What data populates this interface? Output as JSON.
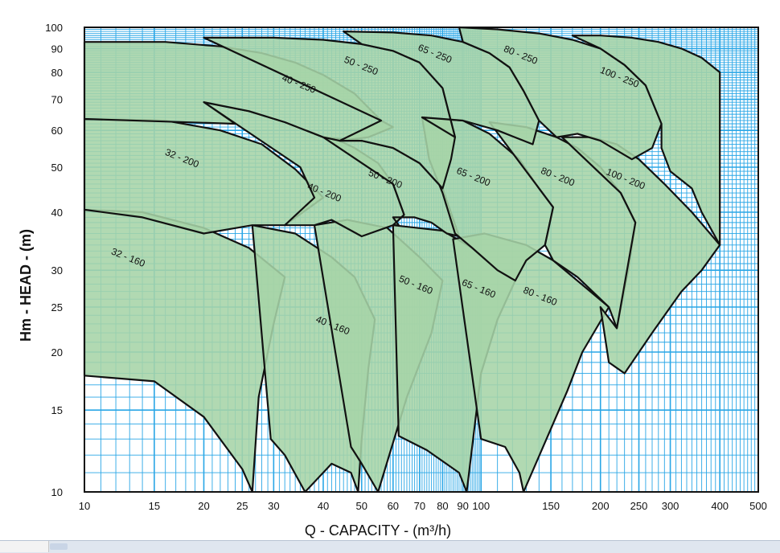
{
  "chart_data": {
    "type": "area",
    "xlabel": "Q - CAPACITY - (m³/h)",
    "ylabel": "Hm - HEAD - (m)",
    "x_scale": "log",
    "y_scale": "log",
    "xlim": [
      10,
      500
    ],
    "ylim": [
      10,
      100
    ],
    "grid": true,
    "x_ticks": [
      10,
      15,
      20,
      25,
      30,
      40,
      50,
      60,
      70,
      80,
      90,
      100,
      150,
      200,
      250,
      300,
      400,
      500
    ],
    "y_ticks": [
      10,
      15,
      20,
      25,
      30,
      40,
      50,
      60,
      70,
      80,
      90,
      100
    ],
    "colors": {
      "fill": "#a6d4a7",
      "grid": "#29a6e6",
      "outline": "#111111",
      "frame": "#111111"
    },
    "series": [
      {
        "name": "32 - 160",
        "label_at": [
          12.8,
          31.5
        ],
        "polygon": [
          [
            10,
            40.5
          ],
          [
            14,
            40
          ],
          [
            20,
            37
          ],
          [
            26,
            33.5
          ],
          [
            32,
            29
          ],
          [
            30,
            23
          ],
          [
            27.5,
            16
          ],
          [
            26.5,
            10
          ],
          [
            25,
            11.2
          ],
          [
            20,
            14.5
          ],
          [
            15,
            17.3
          ],
          [
            10,
            17.8
          ]
        ]
      },
      {
        "name": "40 - 160",
        "label_at": [
          42,
          22.5
        ],
        "polygon": [
          [
            26.5,
            37.5
          ],
          [
            34,
            36
          ],
          [
            42,
            32
          ],
          [
            48,
            29
          ],
          [
            54,
            23.5
          ],
          [
            52,
            18.5
          ],
          [
            50,
            13
          ],
          [
            49,
            10
          ],
          [
            47,
            11
          ],
          [
            42,
            11.5
          ],
          [
            36,
            10
          ],
          [
            32,
            12
          ],
          [
            29.5,
            13
          ]
        ]
      },
      {
        "name": "50 - 160",
        "label_at": [
          68,
          27.5
        ],
        "polygon": [
          [
            38,
            37.5
          ],
          [
            46,
            38.5
          ],
          [
            58,
            37
          ],
          [
            70,
            32
          ],
          [
            80,
            28.5
          ],
          [
            75,
            22
          ],
          [
            65,
            16
          ],
          [
            55,
            10
          ],
          [
            50,
            11.5
          ],
          [
            47,
            12.5
          ]
        ]
      },
      {
        "name": "65 - 160",
        "label_at": [
          98,
          27
        ],
        "polygon": [
          [
            60,
            37.5
          ],
          [
            80,
            36.5
          ],
          [
            95,
            33.5
          ],
          [
            110,
            30
          ],
          [
            122,
            28.5
          ],
          [
            110,
            23.5
          ],
          [
            100,
            18
          ],
          [
            92,
            10
          ],
          [
            88,
            11
          ],
          [
            73,
            12.3
          ],
          [
            62,
            13.2
          ]
        ]
      },
      {
        "name": "80 - 160",
        "label_at": [
          140,
          26
        ],
        "polygon": [
          [
            85,
            35
          ],
          [
            102,
            36
          ],
          [
            130,
            34
          ],
          [
            152,
            31.5
          ],
          [
            210,
            25
          ],
          [
            180,
            20
          ],
          [
            165,
            16.5
          ],
          [
            128,
            10
          ],
          [
            125,
            11
          ],
          [
            115,
            12.5
          ],
          [
            100,
            13
          ]
        ]
      },
      {
        "name": "32 - 200",
        "label_at": [
          17.5,
          51.5
        ],
        "polygon": [
          [
            10,
            63.5
          ],
          [
            16,
            63
          ],
          [
            22,
            60
          ],
          [
            28,
            56
          ],
          [
            34,
            49.5
          ],
          [
            38,
            45
          ],
          [
            40,
            43
          ],
          [
            32,
            37.5
          ],
          [
            26.5,
            37.5
          ],
          [
            20,
            36
          ],
          [
            14,
            39
          ],
          [
            10,
            40.5
          ]
        ]
      },
      {
        "name": "40 - 200",
        "label_at": [
          40,
          43.5
        ],
        "polygon": [
          [
            20,
            69
          ],
          [
            26,
            66
          ],
          [
            32,
            62.5
          ],
          [
            40,
            58
          ],
          [
            44,
            57
          ],
          [
            48,
            55
          ],
          [
            55,
            51
          ],
          [
            60,
            46
          ],
          [
            64,
            39.5
          ],
          [
            60,
            37.5
          ],
          [
            50,
            35.5
          ],
          [
            42,
            38.5
          ],
          [
            38,
            37.5
          ],
          [
            32,
            37.5
          ],
          [
            38,
            43
          ],
          [
            35,
            50
          ]
        ]
      },
      {
        "name": "50 - 200",
        "label_at": [
          57,
          46.5
        ],
        "polygon": [
          [
            40,
            58
          ],
          [
            50,
            57
          ],
          [
            60,
            55
          ],
          [
            70,
            51
          ],
          [
            80,
            45
          ],
          [
            88,
            35.5
          ],
          [
            82,
            36
          ],
          [
            75,
            38
          ],
          [
            68,
            39
          ],
          [
            60,
            39
          ],
          [
            62,
            37.5
          ],
          [
            60,
            37.5
          ],
          [
            64,
            39.5
          ],
          [
            60,
            46
          ]
        ]
      },
      {
        "name": "65 - 200",
        "label_at": [
          95,
          47
        ],
        "polygon": [
          [
            71,
            64
          ],
          [
            90,
            63
          ],
          [
            105,
            59
          ],
          [
            125,
            52
          ],
          [
            140,
            45
          ],
          [
            152,
            41
          ],
          [
            145,
            34
          ],
          [
            130,
            31.5
          ],
          [
            122,
            28.5
          ],
          [
            110,
            30
          ],
          [
            95,
            33.5
          ],
          [
            86,
            36
          ],
          [
            80,
            44
          ],
          [
            74,
            52
          ]
        ]
      },
      {
        "name": "80 - 200",
        "label_at": [
          155,
          47
        ],
        "polygon": [
          [
            105,
            62.5
          ],
          [
            130,
            61
          ],
          [
            155,
            58
          ],
          [
            175,
            55
          ],
          [
            200,
            50
          ],
          [
            225,
            44
          ],
          [
            245,
            38
          ],
          [
            235,
            30
          ],
          [
            220,
            22.5
          ],
          [
            210,
            25
          ],
          [
            175,
            29
          ],
          [
            152,
            31.5
          ],
          [
            145,
            34
          ],
          [
            152,
            41
          ]
        ]
      },
      {
        "name": "100 - 200",
        "label_at": [
          230,
          46.5
        ],
        "polygon": [
          [
            160,
            58
          ],
          [
            190,
            58
          ],
          [
            220,
            56
          ],
          [
            250,
            52
          ],
          [
            290,
            46
          ],
          [
            340,
            40
          ],
          [
            400,
            34
          ],
          [
            360,
            30
          ],
          [
            320,
            27
          ],
          [
            270,
            22
          ],
          [
            230,
            18
          ],
          [
            210,
            19
          ],
          [
            200,
            25
          ],
          [
            220,
            22.5
          ],
          [
            245,
            38
          ],
          [
            225,
            44
          ]
        ]
      },
      {
        "name": "40 - 250",
        "label_at": [
          34.5,
          74.5
        ],
        "polygon": [
          [
            10,
            93
          ],
          [
            16,
            93
          ],
          [
            22,
            91
          ],
          [
            28,
            88
          ],
          [
            34,
            84
          ],
          [
            40,
            79
          ],
          [
            48,
            72
          ],
          [
            56,
            63
          ],
          [
            60,
            61
          ],
          [
            52,
            58
          ],
          [
            44,
            57
          ],
          [
            40,
            58
          ],
          [
            32,
            62.5
          ],
          [
            26,
            66
          ],
          [
            20,
            69
          ],
          [
            24,
            62
          ],
          [
            10,
            63.5
          ]
        ]
      },
      {
        "name": "50 - 250",
        "label_at": [
          49.5,
          81.5
        ],
        "polygon": [
          [
            20,
            95
          ],
          [
            30,
            95
          ],
          [
            40,
            94
          ],
          [
            50,
            92
          ],
          [
            60,
            89
          ],
          [
            70,
            84
          ],
          [
            80,
            74
          ],
          [
            86,
            58
          ],
          [
            84,
            52
          ],
          [
            80,
            45
          ],
          [
            70,
            51
          ],
          [
            60,
            55
          ],
          [
            50,
            57
          ],
          [
            44,
            57
          ],
          [
            56,
            63
          ]
        ]
      },
      {
        "name": "65 - 250",
        "label_at": [
          76,
          86.5
        ],
        "polygon": [
          [
            45,
            98
          ],
          [
            60,
            97.5
          ],
          [
            75,
            96
          ],
          [
            90,
            93
          ],
          [
            105,
            88
          ],
          [
            118,
            82
          ],
          [
            128,
            73
          ],
          [
            140,
            63
          ],
          [
            135,
            56
          ],
          [
            110,
            60
          ],
          [
            90,
            63
          ],
          [
            71,
            64
          ],
          [
            86,
            58
          ],
          [
            80,
            74
          ],
          [
            70,
            84
          ],
          [
            60,
            89
          ],
          [
            50,
            92
          ]
        ]
      },
      {
        "name": "80 - 250",
        "label_at": [
          125,
          86
        ],
        "polygon": [
          [
            88,
            100
          ],
          [
            110,
            99
          ],
          [
            140,
            97
          ],
          [
            170,
            94
          ],
          [
            200,
            90
          ],
          [
            230,
            83
          ],
          [
            260,
            75
          ],
          [
            285,
            62
          ],
          [
            270,
            55
          ],
          [
            240,
            52
          ],
          [
            200,
            57
          ],
          [
            175,
            59
          ],
          [
            155,
            58
          ],
          [
            140,
            63
          ],
          [
            128,
            73
          ],
          [
            118,
            82
          ],
          [
            105,
            88
          ],
          [
            90,
            93
          ]
        ]
      },
      {
        "name": "100 - 250",
        "label_at": [
          222,
          77
        ],
        "polygon": [
          [
            170,
            96
          ],
          [
            200,
            96
          ],
          [
            240,
            95
          ],
          [
            280,
            93
          ],
          [
            320,
            90
          ],
          [
            360,
            86
          ],
          [
            400,
            80
          ],
          [
            400,
            34
          ],
          [
            360,
            40
          ],
          [
            340,
            45
          ],
          [
            300,
            49
          ],
          [
            285,
            55
          ],
          [
            285,
            62
          ],
          [
            260,
            75
          ],
          [
            230,
            83
          ],
          [
            200,
            90
          ]
        ]
      }
    ]
  },
  "status_bar": {
    "visible": true
  }
}
